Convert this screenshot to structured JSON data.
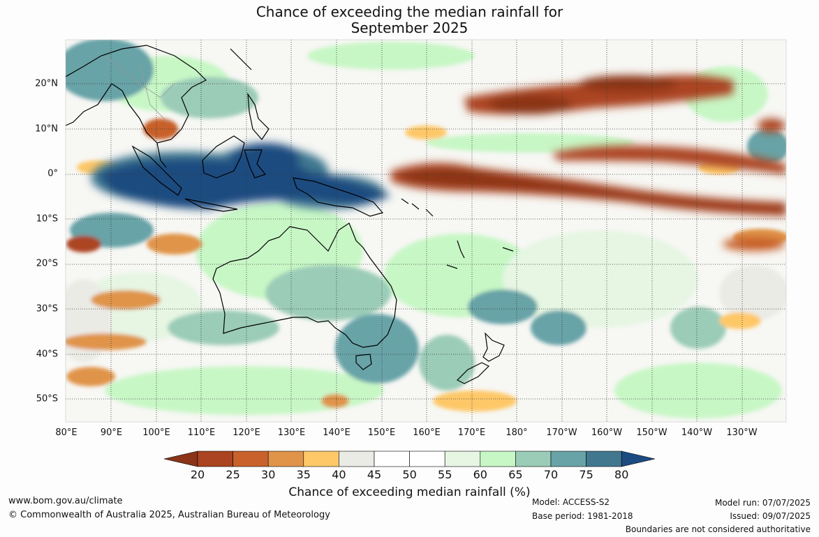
{
  "title": {
    "line1": "Chance of exceeding the median rainfall for",
    "line2": "September 2025"
  },
  "map": {
    "lon_labels": [
      "80°E",
      "90°E",
      "100°E",
      "110°E",
      "120°E",
      "130°E",
      "140°E",
      "150°E",
      "160°E",
      "170°E",
      "180°",
      "170°W",
      "160°W",
      "150°W",
      "140°W",
      "130°W"
    ],
    "lat_labels": [
      "20°N",
      "10°N",
      "0°",
      "10°S",
      "20°S",
      "30°S",
      "40°S",
      "50°S"
    ]
  },
  "colorbar": {
    "ticks": [
      "20",
      "25",
      "30",
      "35",
      "40",
      "45",
      "50",
      "55",
      "60",
      "65",
      "70",
      "75",
      "80"
    ],
    "colors": [
      "#8b3418",
      "#ab4420",
      "#c8612c",
      "#e0944a",
      "#fec868",
      "#ebebe6",
      "#ffffff",
      "#ffffff",
      "#e6f6e3",
      "#c8f7c6",
      "#9bccb8",
      "#68a3a7",
      "#417890",
      "#1c4b80"
    ],
    "label": "Chance of exceeding median rainfall (%)"
  },
  "footer": {
    "website": "www.bom.gov.au/climate",
    "copyright": "© Commonwealth of Australia 2025, Australian Bureau of Meteorology",
    "model": "Model: ACCESS-S2",
    "base_period": "Base period: 1981-2018",
    "model_run": "Model run: 07/07/2025",
    "issued": "Issued: 09/07/2025",
    "disclaimer": "Boundaries are not considered authoritative"
  }
}
